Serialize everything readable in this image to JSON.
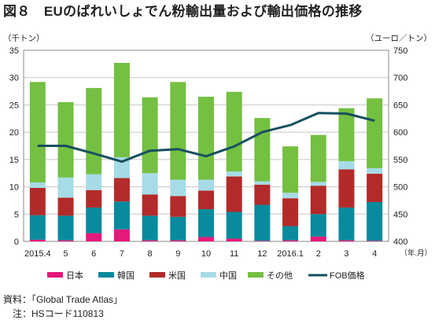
{
  "title": "図８　EUのばれいしょでん粉輸出量および輸出価格の推移",
  "source_note": "資料：「Global Trade Atlas」",
  "code_note": "注：HSコード110813",
  "chart_data": {
    "type": "bar",
    "stacked": true,
    "categories": [
      "2015.4",
      "5",
      "6",
      "7",
      "8",
      "9",
      "10",
      "11",
      "12",
      "2016.1",
      "2",
      "3",
      "4"
    ],
    "x_unit": "（年.月）",
    "y_left_unit": "（千トン）",
    "y_right_unit": "（ユーロ／トン）",
    "ylim_left": [
      0,
      35
    ],
    "yticks_left": [
      0,
      5,
      10,
      15,
      20,
      25,
      30,
      35
    ],
    "ylim_right": [
      400,
      750
    ],
    "yticks_right": [
      400,
      450,
      500,
      550,
      600,
      650,
      700,
      750
    ],
    "grid": true,
    "legend_position": "bottom",
    "series": [
      {
        "name": "日本",
        "color": "#e4197a",
        "values": [
          0.3,
          0.2,
          1.5,
          2.2,
          0.2,
          0.2,
          0.8,
          0.5,
          0.1,
          0.2,
          0.9,
          0.2,
          0.1
        ]
      },
      {
        "name": "韓国",
        "color": "#0a8a9d",
        "values": [
          4.5,
          4.5,
          4.7,
          5.1,
          4.5,
          4.3,
          5.1,
          4.9,
          6.6,
          2.6,
          4.1,
          6.0,
          7.1
        ]
      },
      {
        "name": "米国",
        "color": "#b22b2a",
        "values": [
          5.0,
          3.3,
          3.2,
          4.3,
          3.9,
          3.8,
          3.4,
          6.5,
          3.7,
          5.1,
          5.2,
          7.0,
          5.2
        ]
      },
      {
        "name": "中国",
        "color": "#a7dbe6",
        "values": [
          1.0,
          3.7,
          2.9,
          3.8,
          3.9,
          3.0,
          2.0,
          0.9,
          0.6,
          1.0,
          0.7,
          1.5,
          1.0
        ]
      },
      {
        "name": "その他",
        "color": "#75bf42",
        "values": [
          18.4,
          13.8,
          15.8,
          17.3,
          13.9,
          17.9,
          15.2,
          14.6,
          11.6,
          8.5,
          8.6,
          9.7,
          12.8
        ]
      }
    ],
    "line": {
      "name": "FOB価格",
      "color": "#16505e",
      "axis": "right",
      "values": [
        575,
        575,
        561,
        546,
        566,
        569,
        556,
        574,
        600,
        613,
        635,
        634,
        621
      ]
    }
  }
}
